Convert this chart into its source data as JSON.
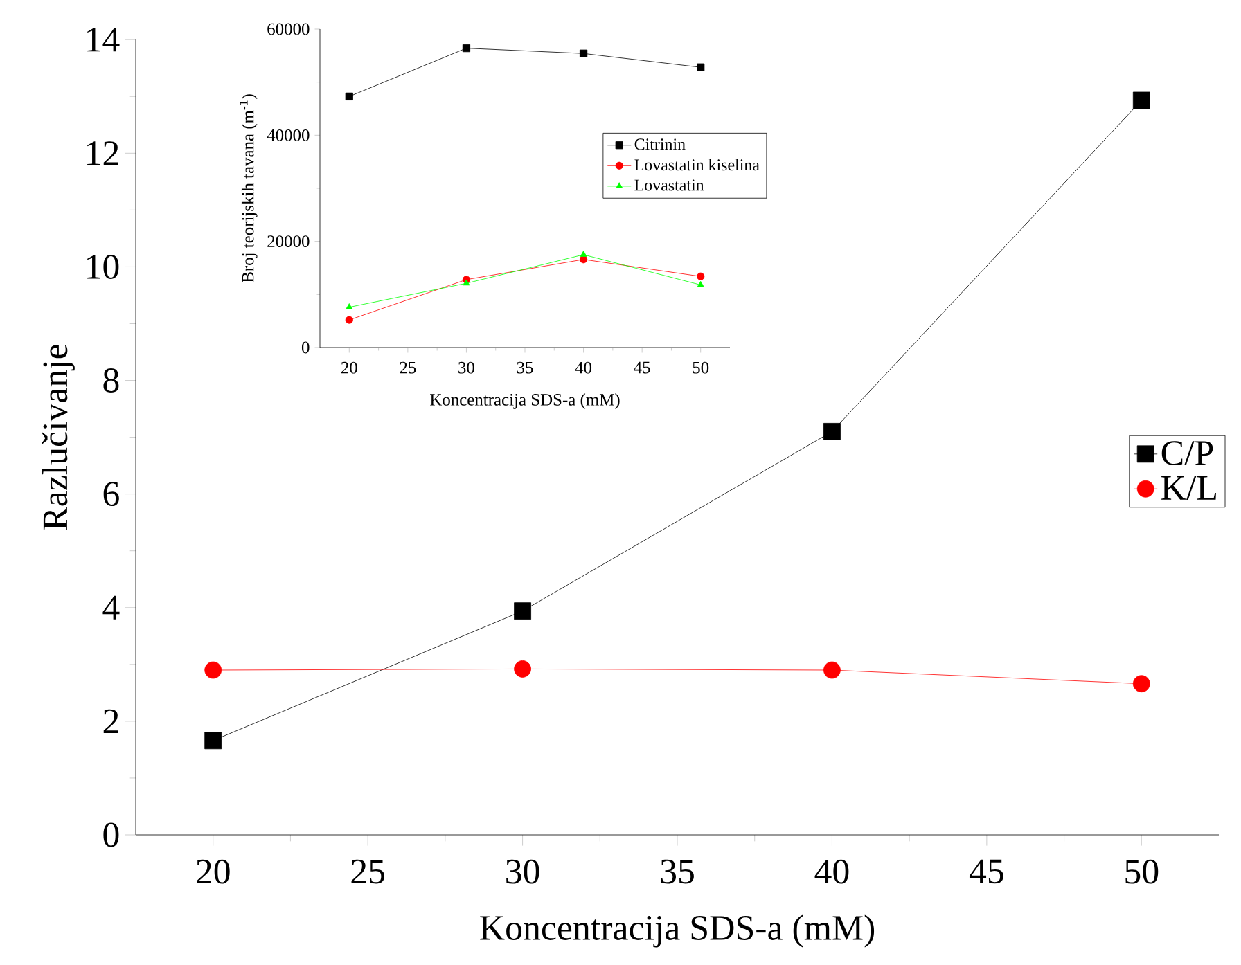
{
  "chart_data": [
    {
      "type": "line",
      "xlabel": "Koncentracija SDS-a (mM)",
      "ylabel": "Razlučivanje",
      "x": [
        20,
        30,
        40,
        50
      ],
      "xlim": [
        17.5,
        52.5
      ],
      "xticks": [
        20,
        25,
        30,
        35,
        40,
        45,
        50
      ],
      "ylim": [
        0,
        14
      ],
      "yticks": [
        0,
        2,
        4,
        6,
        8,
        10,
        12,
        14
      ],
      "legend": "right",
      "series": [
        {
          "name": "C/P",
          "color": "#000000",
          "marker": "square",
          "values": [
            1.66,
            3.94,
            7.1,
            12.93
          ]
        },
        {
          "name": "K/L",
          "color": "#ff0000",
          "marker": "circle",
          "values": [
            2.9,
            2.92,
            2.9,
            2.66
          ]
        }
      ]
    },
    {
      "type": "line",
      "xlabel": "Koncentracija SDS-a (mM)",
      "ylabel": "Broj teorijskih tavana (m$^{-1}$)",
      "x": [
        20,
        30,
        40,
        50
      ],
      "xlim": [
        17.5,
        52.5
      ],
      "xticks": [
        20,
        25,
        30,
        35,
        40,
        45,
        50
      ],
      "ylim": [
        0,
        60000
      ],
      "yticks": [
        0,
        20000,
        40000,
        60000
      ],
      "legend": "right",
      "series": [
        {
          "name": "Citrinin",
          "color": "#000000",
          "marker": "square",
          "values": [
            47300,
            56400,
            55400,
            52800
          ]
        },
        {
          "name": "Lovastatin kiselina",
          "color": "#ff0000",
          "marker": "circle",
          "values": [
            5200,
            12800,
            16600,
            13400
          ]
        },
        {
          "name": "Lovastatin",
          "color": "#00ff00",
          "marker": "triangle",
          "values": [
            7600,
            12100,
            17500,
            11800
          ]
        }
      ]
    }
  ]
}
